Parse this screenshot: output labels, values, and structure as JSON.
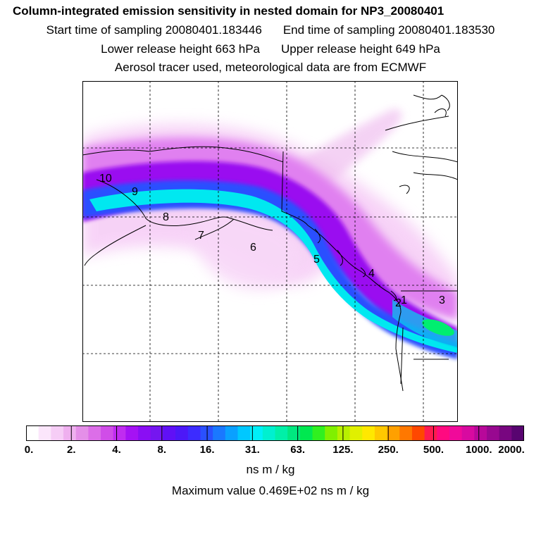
{
  "title": {
    "main": "Column-integrated emission sensitivity in nested domain for NP3_20080401",
    "start": "Start time of sampling 20080401.183446",
    "end": "End time of sampling 20080401.183530",
    "lower": "Lower release height  663 hPa",
    "upper": "Upper release height  649 hPa",
    "info": "Aerosol tracer used, meteorological data are from ECMWF"
  },
  "map": {
    "point_labels": [
      "10",
      "9",
      "8",
      "7",
      "6",
      "5",
      "4",
      "3",
      "2",
      "1"
    ],
    "colors": {
      "land_outline": "#000000",
      "grid": "#000000",
      "plume_faint": "#f5c8f5",
      "plume_light": "#e080f0",
      "plume_mid": "#b000f0",
      "plume_purple": "#8010f0",
      "plume_blue": "#2060ff",
      "plume_cyan": "#00e8f0",
      "plume_green": "#00ee70"
    }
  },
  "colorbar": {
    "colors": [
      "#ffffff",
      "#fbe6fb",
      "#f6cdf6",
      "#efb0ef",
      "#e48fe8",
      "#dc6ee8",
      "#d04de8",
      "#c02cf0",
      "#a512f4",
      "#8a0ef4",
      "#7516f0",
      "#6010f6",
      "#4c18f8",
      "#3c2cff",
      "#2a50ff",
      "#1a78ff",
      "#0aa0ff",
      "#00c8ff",
      "#00f0f8",
      "#00f0d0",
      "#00f0a8",
      "#00e880",
      "#00e850",
      "#30f020",
      "#80f000",
      "#b8f000",
      "#e0f000",
      "#ffe800",
      "#ffc800",
      "#ffa000",
      "#ff7800",
      "#ff4800",
      "#ff1a50",
      "#ff0a80",
      "#f00a9a",
      "#d80aa0",
      "#b8089a",
      "#980890",
      "#780680",
      "#580470"
    ],
    "tick_labels": [
      "0.",
      "2.",
      "4.",
      "8.",
      "16.",
      "31.",
      "63.",
      "125.",
      "250.",
      "500.",
      "1000.",
      "2000."
    ]
  },
  "units": "ns m / kg",
  "max_value": "Maximum value  0.469E+02 ns m / kg"
}
